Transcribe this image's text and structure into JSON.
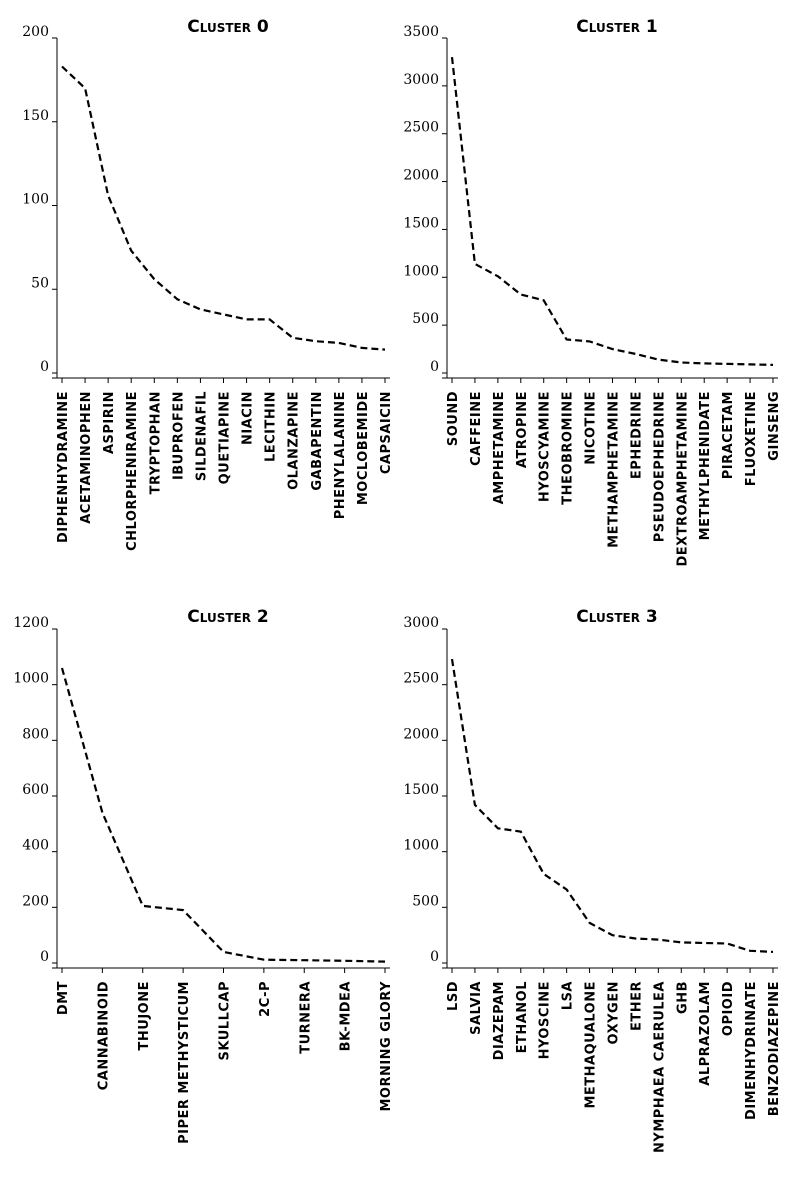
{
  "chart_data": [
    {
      "type": "line",
      "title": "Cluster 0",
      "ylim": [
        0,
        200
      ],
      "yticks": [
        0,
        50,
        100,
        150,
        200
      ],
      "categories": [
        "DIPHENHYDRAMINE",
        "ACETAMINOPHEN",
        "ASPIRIN",
        "CHLORPHENIRAMINE",
        "TRYPTOPHAN",
        "IBUPROFEN",
        "SILDENAFIL",
        "QUETIAPINE",
        "NIACIN",
        "LECITHIN",
        "OLANZAPINE",
        "GABAPENTIN",
        "PHENYLALANINE",
        "MOCLOBEMIDE",
        "CAPSAICIN"
      ],
      "values": [
        183,
        170,
        106,
        73,
        56,
        44,
        38,
        35,
        32,
        32,
        21,
        19,
        18,
        15,
        14
      ],
      "line_style": "dashed",
      "grid": false
    },
    {
      "type": "line",
      "title": "Cluster 1",
      "ylim": [
        0,
        3500
      ],
      "yticks": [
        0,
        500,
        1000,
        1500,
        2000,
        2500,
        3000,
        3500
      ],
      "categories": [
        "SOUND",
        "CAFFEINE",
        "AMPHETAMINE",
        "ATROPINE",
        "HYOSCYAMINE",
        "THEOBROMINE",
        "NICOTINE",
        "METHAMPHETAMINE",
        "EPHEDRINE",
        "PSEUDOEPHEDRINE",
        "DEXTROAMPHETAMINE",
        "METHYLPHENIDATE",
        "PIRACETAM",
        "FLUOXETINE",
        "GINSENG"
      ],
      "values": [
        3300,
        1140,
        1010,
        820,
        760,
        350,
        330,
        250,
        200,
        140,
        110,
        100,
        95,
        90,
        85
      ],
      "line_style": "dashed",
      "grid": false
    },
    {
      "type": "line",
      "title": "Cluster 2",
      "ylim": [
        0,
        1200
      ],
      "yticks": [
        0,
        200,
        400,
        600,
        800,
        1000,
        1200
      ],
      "categories": [
        "DMT",
        "CANNABINOID",
        "THUJONE",
        "PIPER METHYSTICUM",
        "SKULLCAP",
        "2C-P",
        "TURNERA",
        "BK-MDEA",
        "MORNING GLORY"
      ],
      "values": [
        1060,
        540,
        205,
        190,
        40,
        12,
        10,
        8,
        5
      ],
      "line_style": "dashed",
      "grid": false
    },
    {
      "type": "line",
      "title": "Cluster 3",
      "ylim": [
        0,
        3000
      ],
      "yticks": [
        0,
        500,
        1000,
        1500,
        2000,
        2500,
        3000
      ],
      "categories": [
        "LSD",
        "SALVIA",
        "DIAZEPAM",
        "ETHANOL",
        "HYOSCINE",
        "LSA",
        "METHAQUALONE",
        "OXYGEN",
        "ETHER",
        "NYMPHAEA CAERULEA",
        "GHB",
        "ALPRAZOLAM",
        "OPIOID",
        "DIMENHYDRINATE",
        "BENZODIAZEPINE"
      ],
      "values": [
        2730,
        1420,
        1210,
        1180,
        800,
        660,
        360,
        250,
        220,
        210,
        185,
        180,
        175,
        110,
        100
      ],
      "line_style": "dashed",
      "grid": false
    }
  ]
}
